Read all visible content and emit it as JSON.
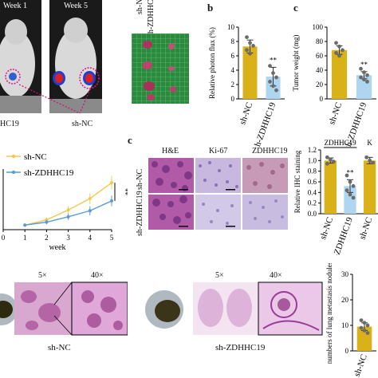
{
  "panel_letters": {
    "b": "b",
    "c": "c",
    "e": "c"
  },
  "imaging": {
    "week1": "Week 1",
    "week5": "Week 5",
    "label_left": "HC19",
    "label_right": "sh-NC"
  },
  "tumor_photo": {
    "label_nc": "sh-NC",
    "label_kd": "sh-ZDHHC19"
  },
  "ihc": {
    "col_he": "H&E",
    "col_ki67": "Ki-67",
    "col_zdhhc19": "ZDHHC19",
    "row_nc": "sh-NC",
    "row_kd": "sh-ZDHHC19"
  },
  "lung": {
    "mag5": "5×",
    "mag40": "40×",
    "mag5b": "5×",
    "mag40b": "40×",
    "label_nc": "sh-NC",
    "label_kd": "sh-ZDHHC19"
  },
  "colors": {
    "nc": "#d9b21a",
    "kd": "#aed6f1",
    "line_nc": "#f2c94c",
    "line_kd": "#5b9bd5"
  },
  "chart_data": [
    {
      "id": "photon-flux",
      "type": "bar",
      "categories": [
        "sh-NC",
        "sh-ZDHHC19"
      ],
      "values": [
        7.3,
        3.1
      ],
      "errors": [
        0.9,
        1.3
      ],
      "points": [
        [
          8.6,
          7.8,
          7.4,
          6.8,
          6.3
        ],
        [
          4.6,
          3.6,
          3.0,
          2.4,
          1.8,
          1.2
        ]
      ],
      "significance": "**",
      "ylabel": "Relative photon flux (%)",
      "ylim": [
        0,
        10
      ],
      "yticks": [
        0,
        2,
        4,
        6,
        8,
        10
      ]
    },
    {
      "id": "tumor-weight",
      "type": "bar",
      "categories": [
        "sh-NC",
        "sh-ZDHHC19"
      ],
      "values": [
        68,
        33
      ],
      "errors": [
        6,
        5
      ],
      "points": [
        [
          78,
          73,
          68,
          64,
          60
        ],
        [
          42,
          37,
          33,
          30,
          27,
          24
        ]
      ],
      "significance": "**",
      "ylabel": "Tumor weight (mg)",
      "ylim": [
        0,
        100
      ],
      "yticks": [
        0,
        20,
        40,
        60,
        80,
        100
      ]
    },
    {
      "id": "tumor-growth",
      "type": "line",
      "x": [
        1,
        2,
        3,
        4,
        5
      ],
      "series": [
        {
          "name": "sh-NC",
          "values": [
            0.6,
            1.3,
            2.6,
            4.1,
            6.2
          ],
          "errors": [
            0.2,
            0.3,
            0.5,
            0.7,
            0.9
          ]
        },
        {
          "name": "sh-ZDHHC19",
          "values": [
            0.6,
            1.0,
            1.7,
            2.5,
            3.8
          ],
          "errors": [
            0.2,
            0.3,
            0.4,
            0.6,
            0.7
          ]
        }
      ],
      "xlabel": "week",
      "xticks": [
        0,
        1,
        2,
        3,
        4,
        5
      ],
      "ylim": [
        0,
        8
      ],
      "significance": "**"
    },
    {
      "id": "ihc-staining",
      "type": "bar",
      "categories": [
        "sh-NC",
        "sh-ZDHHC19",
        "sh-NC"
      ],
      "values": [
        1.0,
        0.52,
        1.0
      ],
      "errors": [
        0.05,
        0.12,
        0.06
      ],
      "points": [
        [
          1.06,
          1.02,
          0.98,
          0.94
        ],
        [
          0.72,
          0.6,
          0.52,
          0.44,
          0.36,
          0.3
        ],
        [
          1.06,
          1.0,
          0.96
        ]
      ],
      "group_labels": [
        "ZDHHC19",
        "K"
      ],
      "significance": "**",
      "ylabel": "Relative IHC staining",
      "ylim": [
        0,
        1.2
      ],
      "yticks": [
        0,
        0.2,
        0.4,
        0.6,
        0.8,
        1.0,
        1.2
      ],
      "ytick_labels": [
        "0.0",
        "0.2",
        "0.4",
        "0.6",
        "0.8",
        "1.0",
        "1.2"
      ]
    },
    {
      "id": "lung-nodules",
      "type": "bar",
      "categories": [
        "sh-NC"
      ],
      "values": [
        9.5
      ],
      "errors": [
        1.5
      ],
      "points": [
        [
          12,
          11,
          10,
          9,
          8,
          7
        ]
      ],
      "ylabel": "numbers of lung metastasis nodules",
      "ylim": [
        0,
        30
      ],
      "yticks": [
        0,
        10,
        20,
        30
      ]
    }
  ]
}
